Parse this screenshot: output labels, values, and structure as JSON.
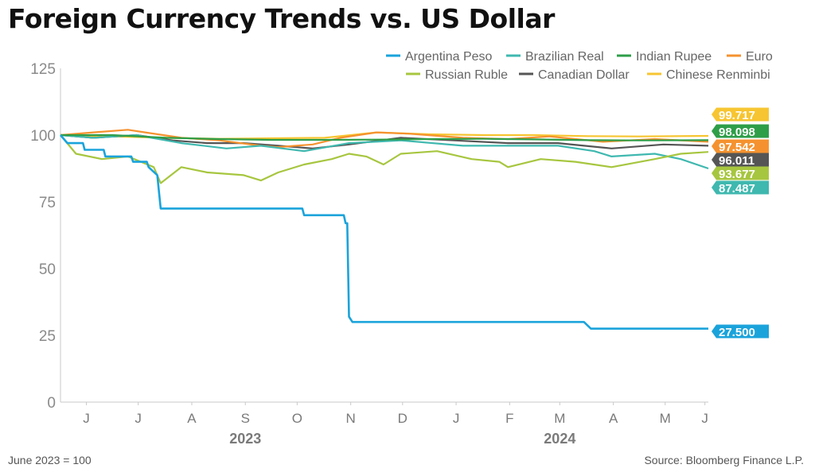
{
  "title": "Foreign Currency Trends vs. US Dollar",
  "footnote": "June 2023 = 100",
  "source": "Source: Bloomberg Finance L.P.",
  "chart_data": {
    "type": "line",
    "ylim": [
      0,
      125
    ],
    "y_ticks": [
      0,
      25,
      50,
      75,
      100,
      125
    ],
    "x_range": [
      "2023-06-01",
      "2024-06-10"
    ],
    "x_ticks": [
      {
        "label": "J",
        "date": "2023-06-16"
      },
      {
        "label": "J",
        "date": "2023-07-16"
      },
      {
        "label": "A",
        "date": "2023-08-16"
      },
      {
        "label": "S",
        "date": "2023-09-16"
      },
      {
        "label": "O",
        "date": "2023-10-16"
      },
      {
        "label": "N",
        "date": "2023-11-16"
      },
      {
        "label": "D",
        "date": "2023-12-16"
      },
      {
        "label": "J",
        "date": "2024-01-16"
      },
      {
        "label": "F",
        "date": "2024-02-16"
      },
      {
        "label": "M",
        "date": "2024-03-16"
      },
      {
        "label": "A",
        "date": "2024-04-16"
      },
      {
        "label": "M",
        "date": "2024-05-16"
      },
      {
        "label": "J",
        "date": "2024-06-08"
      }
    ],
    "year_labels": [
      {
        "label": "2023",
        "date": "2023-09-16"
      },
      {
        "label": "2024",
        "date": "2024-03-16"
      }
    ],
    "legend_position": "top-right",
    "series": [
      {
        "name": "Argentina Peso",
        "color": "#1AA3DB",
        "last_label": "27.500",
        "points": [
          [
            "2023-06-01",
            100
          ],
          [
            "2023-06-05",
            97
          ],
          [
            "2023-06-14",
            97
          ],
          [
            "2023-06-15",
            94.5
          ],
          [
            "2023-06-26",
            94.5
          ],
          [
            "2023-06-27",
            92
          ],
          [
            "2023-07-12",
            92
          ],
          [
            "2023-07-13",
            90
          ],
          [
            "2023-07-21",
            90
          ],
          [
            "2023-07-22",
            88
          ],
          [
            "2023-07-27",
            85
          ],
          [
            "2023-07-29",
            72.5
          ],
          [
            "2023-09-15",
            72.5
          ],
          [
            "2023-10-19",
            72.5
          ],
          [
            "2023-10-20",
            70
          ],
          [
            "2023-11-12",
            70
          ],
          [
            "2023-11-13",
            67
          ],
          [
            "2023-11-14",
            67
          ],
          [
            "2023-11-15",
            32
          ],
          [
            "2023-11-17",
            30
          ],
          [
            "2024-03-30",
            30
          ],
          [
            "2024-04-03",
            27.5
          ],
          [
            "2024-06-10",
            27.5
          ]
        ]
      },
      {
        "name": "Brazilian Real",
        "color": "#3FB8AF",
        "last_label": "87.487",
        "points": [
          [
            "2023-06-01",
            100
          ],
          [
            "2023-06-20",
            99
          ],
          [
            "2023-07-15",
            100
          ],
          [
            "2023-08-10",
            97
          ],
          [
            "2023-09-05",
            95
          ],
          [
            "2023-09-25",
            96
          ],
          [
            "2023-10-20",
            94
          ],
          [
            "2023-11-15",
            97
          ],
          [
            "2023-12-15",
            98
          ],
          [
            "2024-01-20",
            96
          ],
          [
            "2024-02-15",
            96
          ],
          [
            "2024-03-15",
            96
          ],
          [
            "2024-04-05",
            94
          ],
          [
            "2024-04-15",
            92
          ],
          [
            "2024-05-10",
            93
          ],
          [
            "2024-05-25",
            91
          ],
          [
            "2024-06-10",
            87.5
          ]
        ]
      },
      {
        "name": "Indian Rupee",
        "color": "#2E9E48",
        "last_label": "98.098",
        "points": [
          [
            "2023-06-01",
            100
          ],
          [
            "2023-07-01",
            100
          ],
          [
            "2023-08-01",
            99
          ],
          [
            "2023-09-01",
            98.5
          ],
          [
            "2023-10-01",
            98.2
          ],
          [
            "2023-11-01",
            98.2
          ],
          [
            "2023-12-01",
            98.3
          ],
          [
            "2024-01-01",
            98.5
          ],
          [
            "2024-02-01",
            98.6
          ],
          [
            "2024-03-01",
            98.4
          ],
          [
            "2024-04-01",
            98.1
          ],
          [
            "2024-05-01",
            98
          ],
          [
            "2024-06-10",
            98.1
          ]
        ]
      },
      {
        "name": "Euro",
        "color": "#F5922F",
        "last_label": "97.542",
        "points": [
          [
            "2023-06-01",
            100
          ],
          [
            "2023-06-20",
            101
          ],
          [
            "2023-07-10",
            102
          ],
          [
            "2023-07-20",
            101
          ],
          [
            "2023-08-10",
            99
          ],
          [
            "2023-09-01",
            98
          ],
          [
            "2023-09-25",
            96
          ],
          [
            "2023-10-05",
            95.5
          ],
          [
            "2023-10-25",
            96.5
          ],
          [
            "2023-11-10",
            99
          ],
          [
            "2023-12-01",
            101
          ],
          [
            "2023-12-20",
            100.5
          ],
          [
            "2024-01-20",
            99
          ],
          [
            "2024-02-15",
            98.5
          ],
          [
            "2024-03-10",
            99.5
          ],
          [
            "2024-04-10",
            97.5
          ],
          [
            "2024-05-10",
            98.5
          ],
          [
            "2024-06-10",
            97.5
          ]
        ]
      },
      {
        "name": "Russian Ruble",
        "color": "#A7C63F",
        "last_label": "93.677",
        "points": [
          [
            "2023-06-01",
            100
          ],
          [
            "2023-06-10",
            93
          ],
          [
            "2023-06-25",
            91
          ],
          [
            "2023-07-10",
            92
          ],
          [
            "2023-07-25",
            88
          ],
          [
            "2023-07-29",
            82
          ],
          [
            "2023-08-10",
            88
          ],
          [
            "2023-08-25",
            86
          ],
          [
            "2023-09-15",
            85
          ],
          [
            "2023-09-25",
            83
          ],
          [
            "2023-10-05",
            86
          ],
          [
            "2023-10-20",
            89
          ],
          [
            "2023-11-05",
            91
          ],
          [
            "2023-11-15",
            93
          ],
          [
            "2023-11-25",
            92
          ],
          [
            "2023-12-05",
            89
          ],
          [
            "2023-12-15",
            93
          ],
          [
            "2024-01-05",
            94
          ],
          [
            "2024-01-25",
            91
          ],
          [
            "2024-02-10",
            90
          ],
          [
            "2024-02-15",
            88
          ],
          [
            "2024-03-05",
            91
          ],
          [
            "2024-03-25",
            90
          ],
          [
            "2024-04-15",
            88
          ],
          [
            "2024-05-10",
            91
          ],
          [
            "2024-05-25",
            93
          ],
          [
            "2024-06-10",
            93.7
          ]
        ]
      },
      {
        "name": "Canadian Dollar",
        "color": "#555555",
        "last_label": "96.011",
        "points": [
          [
            "2023-06-01",
            100
          ],
          [
            "2023-06-20",
            99
          ],
          [
            "2023-07-15",
            100
          ],
          [
            "2023-08-05",
            98
          ],
          [
            "2023-08-25",
            97
          ],
          [
            "2023-09-15",
            97
          ],
          [
            "2023-10-05",
            96
          ],
          [
            "2023-10-25",
            95
          ],
          [
            "2023-11-15",
            96.5
          ],
          [
            "2023-12-15",
            99
          ],
          [
            "2024-01-15",
            98
          ],
          [
            "2024-02-15",
            97
          ],
          [
            "2024-03-15",
            97
          ],
          [
            "2024-04-15",
            95
          ],
          [
            "2024-05-15",
            96.5
          ],
          [
            "2024-06-10",
            96
          ]
        ]
      },
      {
        "name": "Chinese Renminbi",
        "color": "#F7C531",
        "last_label": "99.717",
        "points": [
          [
            "2023-06-01",
            100
          ],
          [
            "2023-07-01",
            99.5
          ],
          [
            "2023-08-01",
            99
          ],
          [
            "2023-09-01",
            98.6
          ],
          [
            "2023-10-01",
            98.8
          ],
          [
            "2023-11-01",
            99
          ],
          [
            "2023-12-01",
            101
          ],
          [
            "2024-01-01",
            100.3
          ],
          [
            "2024-02-01",
            100
          ],
          [
            "2024-03-01",
            100
          ],
          [
            "2024-04-01",
            99.6
          ],
          [
            "2024-05-01",
            99.5
          ],
          [
            "2024-06-10",
            99.7
          ]
        ]
      }
    ]
  }
}
